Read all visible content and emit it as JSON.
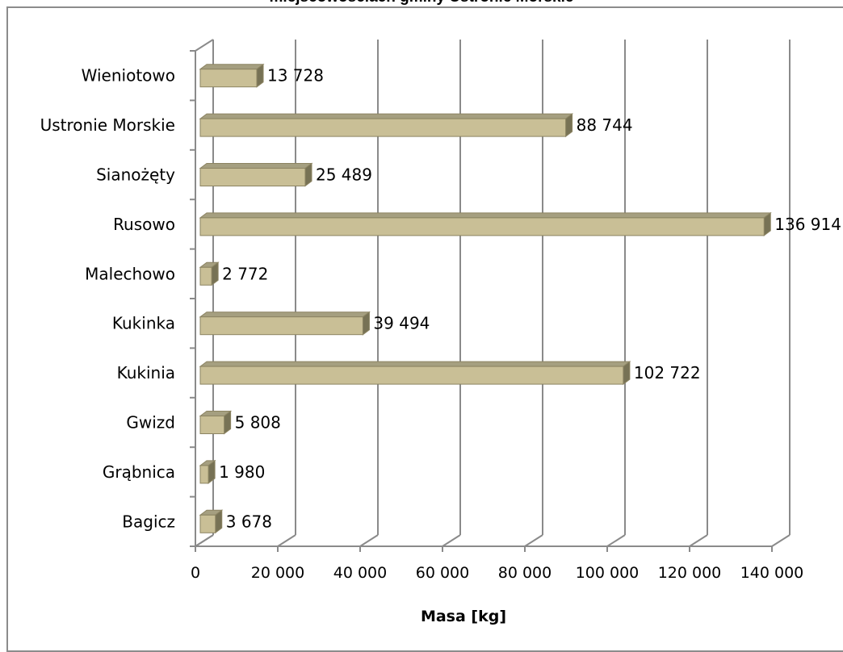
{
  "chart_data": {
    "type": "bar",
    "orientation": "horizontal",
    "title": "miejscowościach gminy Ustronie Morskie",
    "xlabel": "Masa [kg]",
    "ylabel": "",
    "xlim": [
      0,
      140000
    ],
    "xticks": [
      0,
      20000,
      40000,
      60000,
      80000,
      100000,
      120000,
      140000
    ],
    "xtick_labels": [
      "0",
      "20 000",
      "40 000",
      "60 000",
      "80 000",
      "100 000",
      "120 000",
      "140 000"
    ],
    "grid": true,
    "legend": "none",
    "categories": [
      "Bagicz",
      "Grąbnica",
      "Gwizd",
      "Kukinia",
      "Kukinka",
      "Malechowo",
      "Rusowo",
      "Sianożęty",
      "Ustronie Morskie",
      "Wieniotowo"
    ],
    "values": [
      3678,
      1980,
      5808,
      102722,
      39494,
      2772,
      136914,
      25489,
      88744,
      13728
    ],
    "value_labels": [
      "3 678",
      "1 980",
      "5 808",
      "102 722",
      "39 494",
      "2 772",
      "136 914",
      "25 489",
      "88 744",
      "13 728"
    ],
    "colors": {
      "bar_front": "#c9bf96",
      "bar_top": "#a59f80",
      "bar_side": "#777255",
      "bar_edge": "#8c8462",
      "grid": "#8a8a8a",
      "frame": "#8c8c8c"
    }
  }
}
